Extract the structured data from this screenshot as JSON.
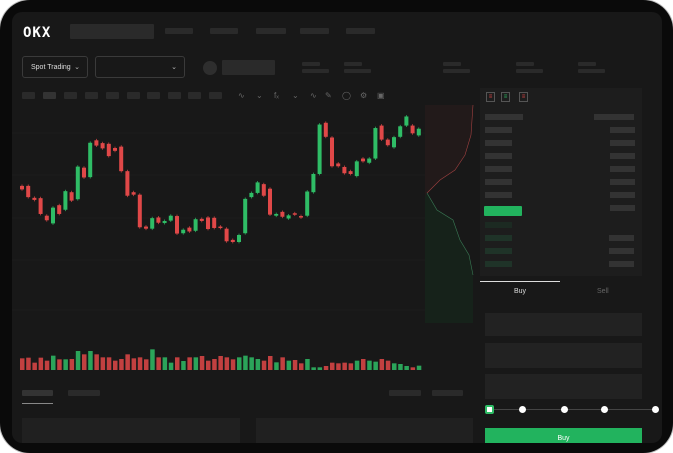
{
  "header": {
    "logo": "OKX"
  },
  "toolbar": {
    "market_select": "Spot Trading",
    "pair_select": ""
  },
  "orderbook": {
    "icons": [
      "orderbook-both-icon",
      "orderbook-bids-icon",
      "orderbook-asks-icon"
    ]
  },
  "trade": {
    "tabs": [
      "Buy",
      "Sell"
    ],
    "active_tab": "Buy",
    "slider_percent": 0
  },
  "colors": {
    "up": "#2fbd66",
    "down": "#e04848",
    "background": "#181818",
    "buy_button": "#22b35e"
  },
  "candles": [
    [
      500,
      490
    ],
    [
      500,
      468
    ],
    [
      466,
      460
    ],
    [
      465,
      420
    ],
    [
      415,
      402
    ],
    [
      393,
      438
    ],
    [
      445,
      420
    ],
    [
      432,
      485
    ],
    [
      482,
      458
    ],
    [
      462,
      555
    ],
    [
      552,
      524
    ],
    [
      525,
      623
    ],
    [
      630,
      615
    ],
    [
      622,
      607
    ],
    [
      620,
      585
    ],
    [
      608,
      600
    ],
    [
      612,
      542
    ],
    [
      542,
      472
    ],
    [
      482,
      475
    ],
    [
      475,
      382
    ],
    [
      384,
      378
    ],
    [
      378,
      408
    ],
    [
      410,
      395
    ],
    [
      394,
      400
    ],
    [
      401,
      415
    ],
    [
      414,
      364
    ],
    [
      365,
      375
    ],
    [
      381,
      370
    ],
    [
      372,
      405
    ],
    [
      406,
      400
    ],
    [
      410,
      377
    ],
    [
      409,
      380
    ],
    [
      384,
      380
    ],
    [
      378,
      342
    ],
    [
      346,
      340
    ],
    [
      340,
      360
    ],
    [
      365,
      463
    ],
    [
      468,
      480
    ],
    [
      480,
      510
    ],
    [
      505,
      472
    ],
    [
      492,
      418
    ],
    [
      415,
      420
    ],
    [
      426,
      412
    ],
    [
      407,
      416
    ],
    [
      422,
      418
    ],
    [
      414,
      410
    ],
    [
      415,
      484
    ],
    [
      482,
      534
    ],
    [
      534,
      675
    ],
    [
      680,
      640
    ],
    [
      638,
      556
    ],
    [
      564,
      556
    ],
    [
      554,
      536
    ],
    [
      542,
      534
    ],
    [
      528,
      570
    ],
    [
      578,
      570
    ],
    [
      566,
      578
    ],
    [
      578,
      665
    ],
    [
      672,
      632
    ],
    [
      632,
      616
    ],
    [
      610,
      639
    ],
    [
      640,
      670
    ],
    [
      672,
      698
    ],
    [
      672,
      650
    ],
    [
      644,
      663
    ]
  ],
  "volumes": [
    35,
    37,
    22,
    37,
    28,
    43,
    32,
    32,
    33,
    57,
    47,
    57,
    47,
    38,
    38,
    28,
    33,
    47,
    35,
    38,
    32,
    62,
    38,
    38,
    22,
    38,
    27,
    38,
    38,
    42,
    28,
    33,
    42,
    38,
    32,
    38,
    43,
    38,
    33,
    28,
    42,
    23,
    38,
    28,
    30,
    20,
    33,
    8,
    8,
    12,
    22,
    20,
    22,
    20,
    28,
    33,
    28,
    25,
    33,
    28,
    20,
    18,
    12,
    8,
    13
  ]
}
